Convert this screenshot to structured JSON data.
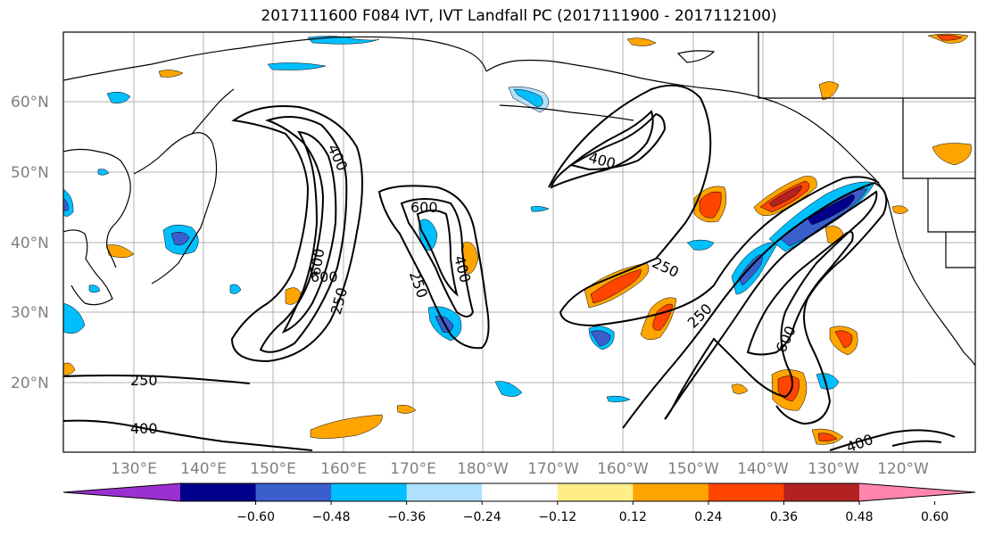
{
  "title": "2017111600 F084 IVT, IVT Landfall PC (2017111900 - 2017112100)",
  "lat_labels": [
    "60°N",
    "50°N",
    "40°N",
    "30°N",
    "20°N"
  ],
  "lon_labels": [
    "130°E",
    "140°E",
    "150°E",
    "160°E",
    "170°E",
    "180°W",
    "170°W",
    "160°W",
    "150°W",
    "140°W",
    "130°W",
    "120°W"
  ],
  "contour_labels": [
    "400",
    "600",
    "250",
    "600",
    "250",
    "400",
    "400",
    "250",
    "600",
    "250",
    "250",
    "400",
    "600",
    "400"
  ],
  "colorbar": {
    "colors": [
      "#9b30d0",
      "#00008b",
      "#3a5fcd",
      "#00bfff",
      "#b0e0ff",
      "#ffffff",
      "#ffee88",
      "#ffa500",
      "#ff4500",
      "#b22222",
      "#ff85b0"
    ],
    "tick_labels": [
      "−0.60",
      "−0.48",
      "−0.36",
      "−0.24",
      "−0.12",
      "0.12",
      "0.24",
      "0.36",
      "0.48",
      "0.60"
    ]
  }
}
